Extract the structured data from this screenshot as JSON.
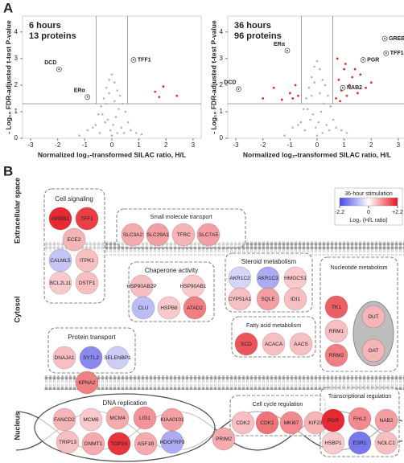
{
  "panel_a_label": "A",
  "chart_data": [
    {
      "type": "scatter",
      "annotations": [
        "6 hours",
        "13 proteins"
      ],
      "x_label": "Normalized log₂-transformed SILAC ratio, H/L",
      "y_label": "- Log₁₀ FDR-adjusted t-test P-value",
      "xlim": [
        -3.3,
        3.3
      ],
      "ylim": [
        0,
        4.6
      ],
      "xticks": [
        -3,
        -2,
        -1,
        0,
        1,
        2,
        3
      ],
      "yticks": [
        0,
        1,
        2,
        3,
        4
      ],
      "thresholds": {
        "x": [
          -0.58,
          0.58
        ],
        "y": 1.3
      },
      "color": "#b5b5b5",
      "highlight_color": "#e03030",
      "x": [
        0,
        -0.1,
        0.1,
        -0.2,
        0.2,
        -0.3,
        0.3,
        -0.4,
        0.4,
        -0.5,
        0.5,
        0.05,
        -0.05,
        0.15,
        -0.15,
        0.25,
        -0.25,
        0.35,
        -0.35,
        0.6,
        -0.6,
        0.7,
        -0.7,
        0.45,
        -0.45,
        0.1,
        -0.1,
        0.0,
        0.2,
        -0.2,
        0.9,
        -0.9,
        1.1,
        -1.2
      ],
      "y": [
        2.4,
        2.2,
        2.1,
        1.9,
        1.8,
        1.5,
        1.6,
        1.2,
        1.3,
        0.9,
        1.0,
        0.5,
        0.3,
        0.8,
        0.7,
        1.1,
        0.6,
        0.4,
        0.9,
        0.6,
        0.5,
        0.3,
        0.4,
        0.2,
        0.2,
        1.4,
        1.7,
        0.1,
        0.2,
        1.3,
        0.2,
        0.3,
        0.15,
        0.1
      ],
      "highlight_x": [
        1.6,
        1.75,
        1.9,
        2.4
      ],
      "highlight_y": [
        1.75,
        1.55,
        1.95,
        1.6
      ],
      "labeled": [
        {
          "label": "DCD",
          "x": -1.95,
          "y": 2.6
        },
        {
          "label": "ERα",
          "x": -0.9,
          "y": 1.55
        },
        {
          "label": "TFF1",
          "x": 0.8,
          "y": 2.95
        }
      ]
    },
    {
      "type": "scatter",
      "annotations": [
        "36 hours",
        "96 proteins"
      ],
      "x_label": "Normalized log₂-transformed SILAC ratio, H/L",
      "y_label": "- Log₁₀ FDR-adjusted t-test P-value",
      "xlim": [
        -3.3,
        3.3
      ],
      "ylim": [
        0,
        4.6
      ],
      "xticks": [
        -3,
        -2,
        -1,
        0,
        1,
        2,
        3
      ],
      "yticks": [
        0,
        1,
        2,
        3,
        4
      ],
      "thresholds": {
        "x": [
          -0.58,
          0.58
        ],
        "y": 1.3
      },
      "color": "#b5b5b5",
      "highlight_color": "#e03030",
      "x": [
        0,
        -0.1,
        0.1,
        -0.2,
        0.2,
        -0.3,
        0.3,
        -0.4,
        0.4,
        -0.5,
        0.5,
        0.05,
        -0.05,
        0.15,
        -0.15,
        0.25,
        -0.25,
        0.35,
        -0.35,
        0.6,
        -0.6,
        0.7,
        -0.7,
        0.45,
        -0.45,
        0.1,
        -0.1,
        0.0,
        0.2,
        -0.2,
        0.9,
        -0.9,
        1.1,
        -1.2
      ],
      "y": [
        2.9,
        2.7,
        2.6,
        2.3,
        2.2,
        1.9,
        2.0,
        1.5,
        1.6,
        1.1,
        1.2,
        0.6,
        0.4,
        1.0,
        0.9,
        1.3,
        0.7,
        0.5,
        1.1,
        0.7,
        0.6,
        0.4,
        0.5,
        0.3,
        0.3,
        1.7,
        2.1,
        0.1,
        0.2,
        1.6,
        0.3,
        0.4,
        0.2,
        0.1
      ],
      "highlight_x": [
        0.7,
        0.8,
        0.9,
        1.0,
        1.1,
        1.2,
        1.3,
        1.5,
        1.6,
        1.8,
        2.0,
        -0.7,
        -0.8,
        -0.9,
        -1.0,
        -1.3,
        -1.6,
        -2.0,
        0.75,
        1.05,
        1.4,
        0.85
      ],
      "highlight_y": [
        1.5,
        2.2,
        1.8,
        2.6,
        1.6,
        2.0,
        2.3,
        1.7,
        2.4,
        1.9,
        2.1,
        1.6,
        2.0,
        1.5,
        1.7,
        1.45,
        1.9,
        1.5,
        3.0,
        2.8,
        2.6,
        1.4
      ],
      "labeled": [
        {
          "label": "ERα",
          "x": -1.1,
          "y": 3.3
        },
        {
          "label": "DCD",
          "x": -2.9,
          "y": 1.85
        },
        {
          "label": "GREB1",
          "x": 2.5,
          "y": 3.75
        },
        {
          "label": "TFF1",
          "x": 2.55,
          "y": 3.2
        },
        {
          "label": "PGR",
          "x": 1.7,
          "y": 2.95
        },
        {
          "label": "NAB2",
          "x": 0.95,
          "y": 1.9
        }
      ]
    }
  ],
  "panel_b": {
    "label": "B",
    "regions": [
      "Extracellular space",
      "Cytosol",
      "Nucleus"
    ],
    "colorbar": {
      "title": "36-hour stimulation",
      "range": [
        -2.2,
        2.2
      ],
      "ticks": [
        -2.2,
        0,
        {
          "value": 2.2,
          "label": "+2.2"
        }
      ],
      "axis_label": "Log₂ (H/L ratio)"
    },
    "groups": [
      {
        "title": "Cell signaling",
        "proteins": [
          {
            "name": "GREB1",
            "value": 2.0
          },
          {
            "name": "TFF1",
            "value": 1.8
          },
          {
            "name": "ECE2",
            "value": 0.7
          },
          {
            "name": "CALML5",
            "value": -0.7
          },
          {
            "name": "ITPK1",
            "value": 0.6
          },
          {
            "name": "BCL2L11",
            "value": 0.5
          },
          {
            "name": "DSTF1",
            "value": 0.6
          }
        ]
      },
      {
        "title": "Small molecule transport",
        "proteins": [
          {
            "name": "SLC3A2",
            "value": 0.8
          },
          {
            "name": "SLC29A1",
            "value": 0.9
          },
          {
            "name": "TFRC",
            "value": 0.7
          },
          {
            "name": "SLC7A5",
            "value": 0.9
          }
        ]
      },
      {
        "title": "Chaperone activity",
        "proteins": [
          {
            "name": "HSP90AB2P",
            "value": 0.6
          },
          {
            "name": "HSP90AB1",
            "value": 0.5
          },
          {
            "name": "CLU",
            "value": -0.8
          },
          {
            "name": "HSPB8",
            "value": 0.5
          },
          {
            "name": "ATAD2",
            "value": 1.2
          }
        ]
      },
      {
        "title": "Steroid metabolism",
        "proteins": [
          {
            "name": "AKR1C2",
            "value": -0.5
          },
          {
            "name": "AKR1C3",
            "value": -1.0
          },
          {
            "name": "HMGCS1",
            "value": 0.5
          },
          {
            "name": "CYP51A1",
            "value": 0.6
          },
          {
            "name": "SQLE",
            "value": 0.9
          },
          {
            "name": "IDI1",
            "value": 0.6
          }
        ]
      },
      {
        "title": "Nucleotide metabolism",
        "proteins": [
          {
            "name": "TK1",
            "value": 1.5
          },
          {
            "name": "RRM1",
            "value": 0.6
          },
          {
            "name": "RRM2",
            "value": 1.2
          },
          {
            "name": "DUT",
            "value": 0.7
          },
          {
            "name": "OAT",
            "value": 0.7
          }
        ]
      },
      {
        "title": "Fatty acid metabolism",
        "proteins": [
          {
            "name": "SCD",
            "value": 1.6
          },
          {
            "name": "ACACA",
            "value": 0.6
          },
          {
            "name": "AACS",
            "value": 0.6
          }
        ]
      },
      {
        "title": "Protein transport",
        "proteins": [
          {
            "name": "DNAJA1",
            "value": 0.6
          },
          {
            "name": "SYTL2",
            "value": -1.4
          },
          {
            "name": "SELENBP1",
            "value": -0.6
          },
          {
            "name": "KPNA2",
            "value": 1.2
          }
        ]
      },
      {
        "title": "Cell cycle regulation",
        "proteins": [
          {
            "name": "CDK2",
            "value": 0.6
          },
          {
            "name": "CDK1",
            "value": 1.3
          },
          {
            "name": "MKI67",
            "value": 1.1
          },
          {
            "name": "KIF23",
            "value": 0.7
          }
        ]
      },
      {
        "title": "DNA replication",
        "proteins": [
          {
            "name": "FANCD2",
            "value": 0.7
          },
          {
            "name": "MCM6",
            "value": 0.5
          },
          {
            "name": "MCM4",
            "value": 0.8
          },
          {
            "name": "LIG1",
            "value": 1.0
          },
          {
            "name": "KIAA0101",
            "value": 0.9
          },
          {
            "name": "TRIP13",
            "value": 0.6
          },
          {
            "name": "DNMT1",
            "value": 0.8
          },
          {
            "name": "TOP2A",
            "value": 1.9
          },
          {
            "name": "ASF1B",
            "value": 0.8
          },
          {
            "name": "HDGFRP3",
            "value": -1.0
          },
          {
            "name": "PRIM2",
            "value": 0.8
          }
        ]
      },
      {
        "title": "Transcriptional regulation",
        "proteins": [
          {
            "name": "PGR",
            "value": 2.0
          },
          {
            "name": "FHL2",
            "value": 1.1
          },
          {
            "name": "NAB2",
            "value": 0.9
          },
          {
            "name": "HSBP1",
            "value": 0.5
          },
          {
            "name": "ESR1",
            "value": -1.6
          },
          {
            "name": "NOLC1",
            "value": 0.6
          }
        ]
      }
    ]
  }
}
